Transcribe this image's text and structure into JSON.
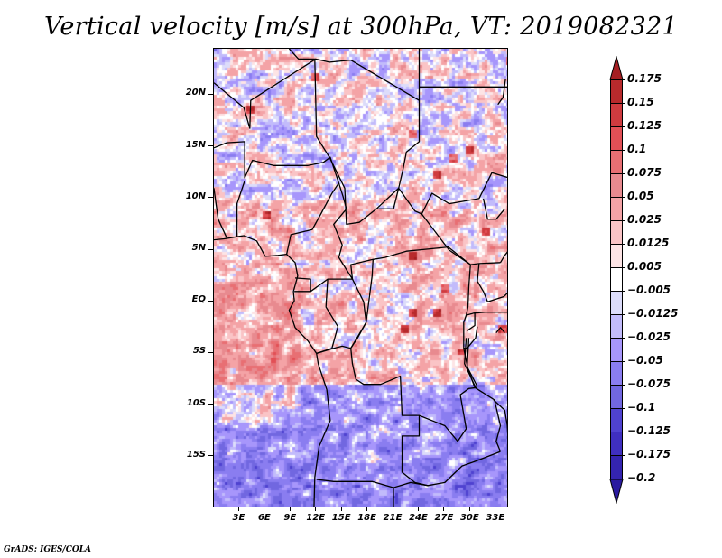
{
  "title": "Vertical velocity [m/s] at 300hPa, VT: 2019082321",
  "footer": "GrADS: IGES/COLA",
  "chart_data": {
    "type": "heatmap",
    "title": "Vertical velocity [m/s] at 300hPa, VT: 2019082321",
    "variable": "Vertical velocity",
    "units": "m/s",
    "level": "300hPa",
    "valid_time": "2019082321",
    "lon_range": [
      0,
      34.5
    ],
    "lat_range": [
      -20,
      24.5
    ],
    "x_ticks": [
      {
        "value": 3,
        "label": "3E"
      },
      {
        "value": 6,
        "label": "6E"
      },
      {
        "value": 9,
        "label": "9E"
      },
      {
        "value": 12,
        "label": "12E"
      },
      {
        "value": 15,
        "label": "15E"
      },
      {
        "value": 18,
        "label": "18E"
      },
      {
        "value": 21,
        "label": "21E"
      },
      {
        "value": 24,
        "label": "24E"
      },
      {
        "value": 27,
        "label": "27E"
      },
      {
        "value": 30,
        "label": "30E"
      },
      {
        "value": 33,
        "label": "33E"
      }
    ],
    "y_ticks": [
      {
        "value": 20,
        "label": "20N"
      },
      {
        "value": 15,
        "label": "15N"
      },
      {
        "value": 10,
        "label": "10N"
      },
      {
        "value": 5,
        "label": "5N"
      },
      {
        "value": 0,
        "label": "EQ"
      },
      {
        "value": -5,
        "label": "5S"
      },
      {
        "value": -10,
        "label": "10S"
      },
      {
        "value": -15,
        "label": "15S"
      }
    ],
    "colorbar": {
      "orientation": "vertical",
      "placement": "right",
      "extend": "both",
      "levels": [
        0.175,
        0.15,
        0.125,
        0.1,
        0.075,
        0.05,
        0.025,
        0.0125,
        0.005,
        -0.005,
        -0.0125,
        -0.025,
        -0.05,
        -0.075,
        -0.1,
        -0.125,
        -0.175,
        -0.2
      ],
      "level_labels": [
        "0.175",
        "0.15",
        "0.125",
        "0.1",
        "0.075",
        "0.05",
        "0.025",
        "0.0125",
        "0.005",
        "−0.005",
        "−0.0125",
        "−0.025",
        "−0.05",
        "−0.075",
        "−0.1",
        "−0.125",
        "−0.175",
        "−0.2"
      ],
      "colors_top_to_bottom": [
        "#a51e22",
        "#b82a2c",
        "#cf3b3f",
        "#e25056",
        "#e86f73",
        "#e88a8f",
        "#f4a3a6",
        "#fac4c6",
        "#fde4e5",
        "#ffffff",
        "#dcdcfa",
        "#c2bbfb",
        "#a796fb",
        "#8a7df0",
        "#7167e0",
        "#4f42d0",
        "#3f2fc0",
        "#3424b0",
        "#2a1aa0"
      ]
    }
  }
}
